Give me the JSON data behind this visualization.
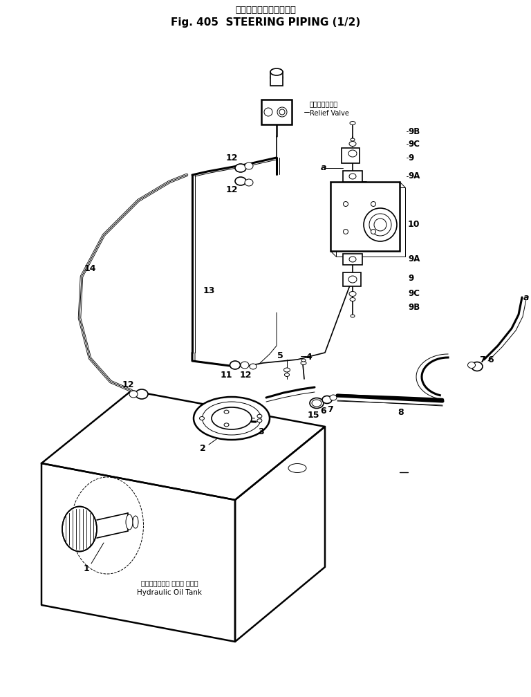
{
  "title_jp": "ステアリングパイピング",
  "title_en": "Fig. 405  STEERING PIPING (1/2)",
  "bg_color": "#ffffff",
  "line_color": "#000000",
  "fig_width": 7.68,
  "fig_height": 10.08,
  "dpi": 100,
  "relief_valve_label_jp": "リリーフバルブ",
  "relief_valve_label_en": "Relief Valve",
  "tank_label_jp": "ハイドロリック オイル タンク",
  "tank_label_en": "Hydraulic Oil Tank"
}
